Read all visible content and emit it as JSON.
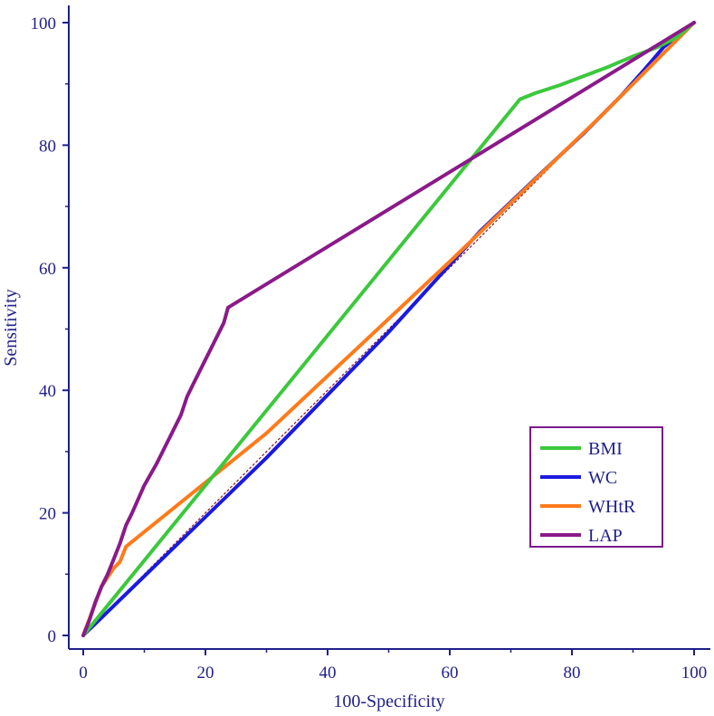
{
  "colors": {
    "axis": "#1f1f8a",
    "reference_line": "#8b1a1a",
    "legend_border": "#7a1a8a"
  },
  "chart_data": {
    "type": "line",
    "xlabel": "100-Specificity",
    "ylabel": "Sensitivity",
    "xlim": [
      0,
      100
    ],
    "ylim": [
      0,
      100
    ],
    "x_ticks": [
      0,
      20,
      40,
      60,
      80,
      100
    ],
    "y_ticks": [
      0,
      20,
      40,
      60,
      80,
      100
    ],
    "x_tick_labels": [
      "0",
      "20",
      "40",
      "60",
      "80",
      "100"
    ],
    "y_tick_labels": [
      "0",
      "20",
      "40",
      "60",
      "80",
      "100"
    ],
    "grid": false,
    "legend_position": "lower-right",
    "reference_line": {
      "x": [
        0,
        100
      ],
      "y": [
        0,
        100
      ],
      "style": "dashed"
    },
    "series": [
      {
        "name": "BMI",
        "color": "#3cc83c",
        "x": [
          0,
          71.5,
          74,
          78,
          82,
          86,
          90,
          94,
          97,
          100
        ],
        "y": [
          0,
          87.5,
          88.5,
          89.8,
          91.3,
          92.8,
          94.5,
          96.0,
          97.5,
          100
        ]
      },
      {
        "name": "WC",
        "color": "#1a1ae0",
        "x": [
          0,
          30,
          50,
          65,
          75,
          82,
          88,
          92,
          95,
          100
        ],
        "y": [
          0,
          29,
          49.5,
          66,
          75.5,
          82,
          88,
          92.5,
          96,
          100
        ]
      },
      {
        "name": "WHtR",
        "color": "#ff7a1a",
        "x": [
          0,
          1.5,
          3,
          5,
          6,
          7,
          30,
          60,
          85,
          100
        ],
        "y": [
          0,
          4,
          8,
          11,
          12,
          14.5,
          33,
          61,
          85,
          100
        ]
      },
      {
        "name": "LAP",
        "color": "#8a1a8a",
        "x": [
          0,
          1,
          2,
          3,
          4,
          5,
          6,
          7,
          8,
          10,
          12,
          14,
          16,
          17,
          18,
          20,
          21,
          22,
          23,
          23.7,
          100
        ],
        "y": [
          0,
          2.5,
          5.5,
          8,
          10,
          12.5,
          15,
          18,
          20,
          24.5,
          28,
          32,
          36,
          39,
          41,
          45,
          47,
          49,
          51,
          53.5,
          100
        ]
      }
    ]
  }
}
